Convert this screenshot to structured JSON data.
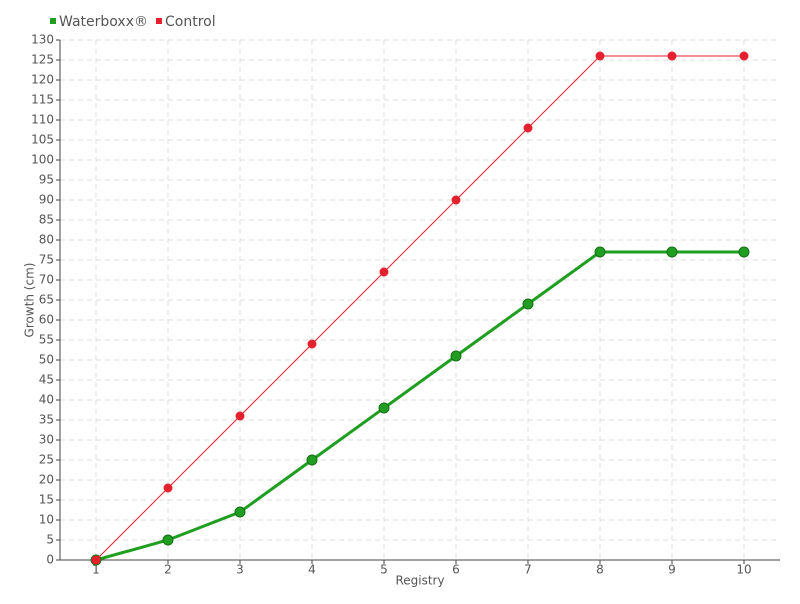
{
  "chart_data": {
    "type": "line",
    "x": [
      1,
      2,
      3,
      4,
      5,
      6,
      7,
      8,
      9,
      10
    ],
    "series": [
      {
        "name": "Waterboxx®",
        "color": "#1f9e1f",
        "values": [
          0,
          5,
          12,
          25,
          38,
          51,
          64,
          77,
          77,
          77
        ]
      },
      {
        "name": "Control",
        "color": "#e8202e",
        "values": [
          0,
          18,
          36,
          54,
          72,
          90,
          108,
          126,
          126,
          126
        ]
      }
    ],
    "x_label": "Registry",
    "y_label": "Growth (cm)",
    "xlim": [
      0.5,
      10.5
    ],
    "xticks": [
      1,
      2,
      3,
      4,
      5,
      6,
      7,
      8,
      9,
      10
    ],
    "ylim": [
      0,
      130
    ],
    "yticks": [
      0,
      5,
      10,
      15,
      20,
      25,
      30,
      35,
      40,
      45,
      50,
      55,
      60,
      65,
      70,
      75,
      80,
      85,
      90,
      95,
      100,
      105,
      110,
      115,
      120,
      125,
      130
    ],
    "grid": true,
    "legend": "top-left"
  }
}
